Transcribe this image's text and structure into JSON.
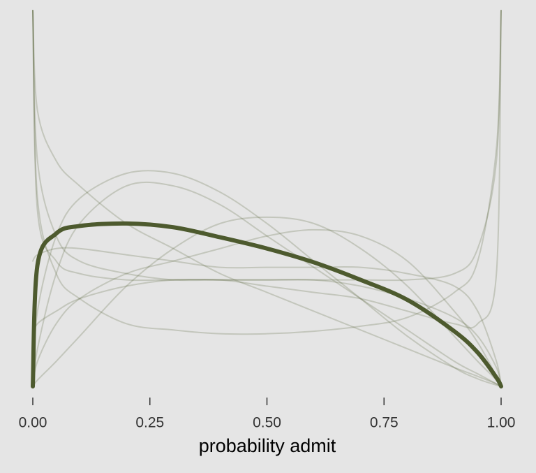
{
  "chart_data": {
    "type": "line",
    "x_label": "probability admit",
    "x": [
      0,
      0.01,
      0.05,
      0.1,
      0.2,
      0.3,
      0.4,
      0.5,
      0.6,
      0.7,
      0.8,
      0.9,
      0.95,
      0.99,
      1
    ],
    "xlim": [
      0,
      1
    ],
    "ylim": [
      0,
      3
    ],
    "xticks": [
      {
        "value": 0,
        "label": "0.00"
      },
      {
        "value": 0.25,
        "label": "0.25"
      },
      {
        "value": 0.5,
        "label": "0.50"
      },
      {
        "value": 0.75,
        "label": "0.75"
      },
      {
        "value": 1,
        "label": "1.00"
      }
    ],
    "series": [
      {
        "color": "#4d5a2e",
        "width": 2,
        "opacity": 0.22,
        "values": [
          3,
          1.5,
          0.9,
          0.7,
          0.5,
          0.45,
          0.42,
          0.42,
          0.44,
          0.48,
          0.55,
          0.75,
          1.0,
          1.9,
          3
        ]
      },
      {
        "color": "#4d5a2e",
        "width": 2,
        "opacity": 0.22,
        "values": [
          0,
          0.05,
          0.2,
          0.4,
          0.8,
          1.1,
          1.3,
          1.35,
          1.3,
          1.1,
          0.8,
          0.4,
          0.2,
          0.05,
          0
        ]
      },
      {
        "color": "#4d5a2e",
        "width": 2,
        "opacity": 0.22,
        "values": [
          3,
          2.2,
          1.8,
          1.6,
          1.3,
          1.1,
          0.9,
          0.75,
          0.6,
          0.45,
          0.3,
          0.15,
          0.08,
          0.02,
          0
        ]
      },
      {
        "color": "#4d5a2e",
        "width": 2,
        "opacity": 0.22,
        "values": [
          0,
          0.3,
          0.9,
          1.3,
          1.6,
          1.6,
          1.45,
          1.2,
          0.95,
          0.7,
          0.45,
          0.2,
          0.1,
          0.02,
          0
        ]
      },
      {
        "color": "#4d5a2e",
        "width": 2,
        "opacity": 0.22,
        "values": [
          0.4,
          0.5,
          0.6,
          0.7,
          0.8,
          0.85,
          0.85,
          0.85,
          0.85,
          0.85,
          0.85,
          0.9,
          1.1,
          1.8,
          3
        ]
      },
      {
        "color": "#4d5a2e",
        "width": 2,
        "opacity": 0.22,
        "values": [
          3,
          1.8,
          1.2,
          1.0,
          0.9,
          0.85,
          0.85,
          0.85,
          0.85,
          0.8,
          0.7,
          0.55,
          0.4,
          0.15,
          0
        ]
      },
      {
        "color": "#4d5a2e",
        "width": 2,
        "opacity": 0.22,
        "values": [
          0,
          0.6,
          1.2,
          1.5,
          1.7,
          1.7,
          1.55,
          1.3,
          1.0,
          0.7,
          0.4,
          0.15,
          0.06,
          0.01,
          0
        ]
      },
      {
        "color": "#4d5a2e",
        "width": 2,
        "opacity": 0.22,
        "values": [
          1.0,
          1.05,
          1.1,
          1.1,
          1.05,
          1.0,
          0.95,
          0.95,
          0.95,
          0.95,
          0.9,
          0.8,
          0.6,
          0.2,
          0
        ]
      },
      {
        "color": "#4d5a2e",
        "width": 2,
        "opacity": 0.22,
        "values": [
          0,
          0.2,
          0.5,
          0.7,
          0.9,
          1.0,
          1.1,
          1.2,
          1.25,
          1.2,
          1.0,
          0.6,
          0.35,
          0.08,
          0
        ]
      },
      {
        "color": "#4d5a2e",
        "width": 2,
        "opacity": 0.22,
        "values": [
          3,
          1.4,
          1.0,
          0.9,
          0.85,
          0.85,
          0.85,
          0.8,
          0.75,
          0.7,
          0.6,
          0.5,
          0.5,
          0.9,
          3
        ]
      },
      {
        "color": "#4d5a2e",
        "width": 6,
        "opacity": 1,
        "values": [
          0,
          0.97,
          1.22,
          1.28,
          1.3,
          1.27,
          1.19,
          1.1,
          0.99,
          0.85,
          0.69,
          0.44,
          0.27,
          0.07,
          0
        ]
      }
    ]
  }
}
